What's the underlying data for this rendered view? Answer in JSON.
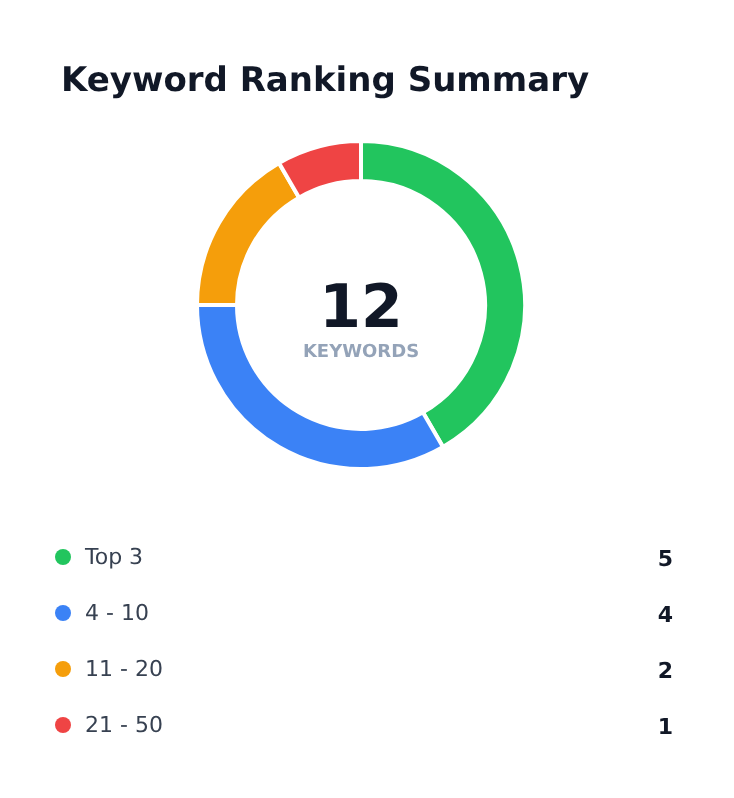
{
  "chart_data": {
    "type": "donut",
    "title": "Keyword Ranking Summary",
    "categories": [
      "Top 3",
      "4 - 10",
      "11 - 20",
      "21 - 50"
    ],
    "values": [
      5,
      4,
      2,
      1
    ],
    "colors": [
      "#22c55e",
      "#3b82f6",
      "#f59e0b",
      "#ef4444"
    ],
    "annotations": [
      "12",
      "KEYWORDS"
    ],
    "legend": "bottom",
    "data_labels": true
  }
}
